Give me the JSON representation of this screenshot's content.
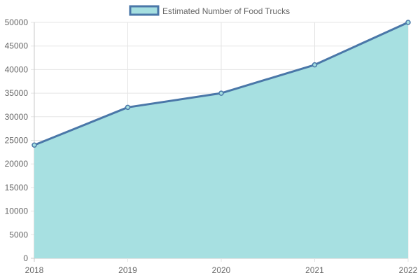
{
  "chart_data": {
    "type": "area",
    "title": "",
    "xlabel": "",
    "ylabel": "",
    "categories": [
      "2018",
      "2019",
      "2020",
      "2021",
      "2022"
    ],
    "series": [
      {
        "name": "Estimated Number of Food Trucks",
        "values": [
          24000,
          32000,
          35000,
          41000,
          50000
        ]
      }
    ],
    "ylim": [
      0,
      50000
    ],
    "y_ticks": [
      0,
      5000,
      10000,
      15000,
      20000,
      25000,
      30000,
      35000,
      40000,
      45000,
      50000
    ],
    "grid": true,
    "legend": "top-center",
    "colors": {
      "line": "#4a77a8",
      "fill": "#a5dfe0",
      "grid": "#e5e5e5",
      "axis": "#c8c8c8",
      "text": "#666666"
    }
  }
}
